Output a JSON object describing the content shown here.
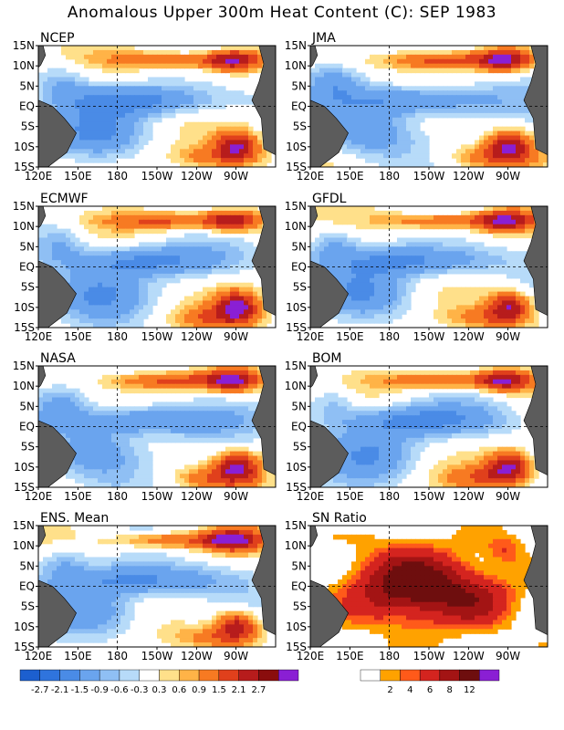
{
  "title": "Anomalous Upper 300m Heat Content (C): SEP 1983",
  "lat_labels": [
    "15N",
    "10N",
    "5N",
    "EQ",
    "5S",
    "10S",
    "15S"
  ],
  "lon_labels": [
    "120E",
    "150E",
    "180",
    "150W",
    "120W",
    "90W"
  ],
  "panels": [
    {
      "name": "NCEP",
      "type": "model"
    },
    {
      "name": "JMA",
      "type": "model"
    },
    {
      "name": "ECMWF",
      "type": "model"
    },
    {
      "name": "GFDL",
      "type": "model"
    },
    {
      "name": "NASA",
      "type": "model"
    },
    {
      "name": "BOM",
      "type": "model"
    },
    {
      "name": "ENS. Mean",
      "type": "model"
    },
    {
      "name": "SN Ratio",
      "type": "snr"
    }
  ],
  "colorbar_anomaly": {
    "labels": [
      "-2.7",
      "-2.1",
      "-1.5",
      "-0.9",
      "-0.6",
      "-0.3",
      "0.3",
      "0.6",
      "0.9",
      "1.5",
      "2.1",
      "2.7"
    ],
    "colors": [
      "#1c5fcf",
      "#2f74dd",
      "#4a8be6",
      "#6aa4ee",
      "#8fbff4",
      "#b7dbf9",
      "#ffffff",
      "#ffe08a",
      "#ffb347",
      "#f77a22",
      "#e0401c",
      "#b71c1c",
      "#8a0d0d",
      "#8a1fd4"
    ]
  },
  "colorbar_snr": {
    "labels": [
      "2",
      "4",
      "6",
      "8",
      "12"
    ],
    "colors": [
      "#ffffff",
      "#ffa200",
      "#ff5a1a",
      "#d4241f",
      "#a31414",
      "#6e0e0e",
      "#8a1fd4"
    ]
  },
  "land_color": "#5c5c5c"
}
